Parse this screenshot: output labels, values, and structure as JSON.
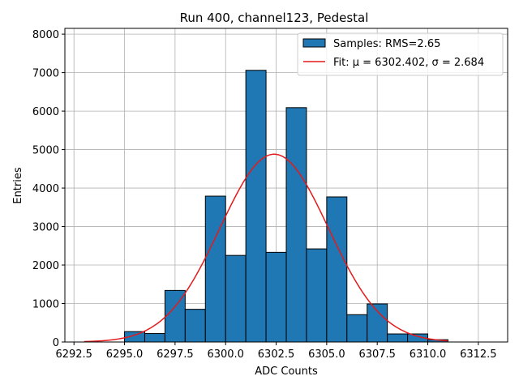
{
  "chart_data": {
    "type": "bar",
    "title": "Run 400, channel123, Pedestal",
    "xlabel": "ADC Counts",
    "ylabel": "Entries",
    "xlim": [
      6292.05,
      6313.95
    ],
    "ylim": [
      0,
      8150
    ],
    "xticks": [
      6292.5,
      6295.0,
      6297.5,
      6300.0,
      6302.5,
      6305.0,
      6307.5,
      6310.0,
      6312.5
    ],
    "xtick_labels": [
      "6292.5",
      "6295.0",
      "6297.5",
      "6300.0",
      "6302.5",
      "6305.0",
      "6307.5",
      "6310.0",
      "6312.5"
    ],
    "yticks": [
      0,
      1000,
      2000,
      3000,
      4000,
      5000,
      6000,
      7000,
      8000
    ],
    "ytick_labels": [
      "0",
      "1000",
      "2000",
      "3000",
      "4000",
      "5000",
      "6000",
      "7000",
      "8000"
    ],
    "grid": true,
    "bar_color": "#1f77b4",
    "fit_color": "#e41a1c",
    "histogram": {
      "name": "Samples: RMS=2.65",
      "bins": [
        {
          "x0": 6293.0,
          "x1": 6294.0,
          "count": 0
        },
        {
          "x0": 6294.0,
          "x1": 6295.0,
          "count": 0
        },
        {
          "x0": 6295.0,
          "x1": 6296.0,
          "count": 270
        },
        {
          "x0": 6296.0,
          "x1": 6297.0,
          "count": 220
        },
        {
          "x0": 6297.0,
          "x1": 6298.0,
          "count": 1340
        },
        {
          "x0": 6298.0,
          "x1": 6299.0,
          "count": 850
        },
        {
          "x0": 6299.0,
          "x1": 6300.0,
          "count": 3790
        },
        {
          "x0": 6300.0,
          "x1": 6301.0,
          "count": 2250
        },
        {
          "x0": 6301.0,
          "x1": 6302.0,
          "count": 7060
        },
        {
          "x0": 6302.0,
          "x1": 6303.0,
          "count": 2330
        },
        {
          "x0": 6303.0,
          "x1": 6304.0,
          "count": 6090
        },
        {
          "x0": 6304.0,
          "x1": 6305.0,
          "count": 2420
        },
        {
          "x0": 6305.0,
          "x1": 6306.0,
          "count": 3770
        },
        {
          "x0": 6306.0,
          "x1": 6307.0,
          "count": 710
        },
        {
          "x0": 6307.0,
          "x1": 6308.0,
          "count": 990
        },
        {
          "x0": 6308.0,
          "x1": 6309.0,
          "count": 210
        },
        {
          "x0": 6309.0,
          "x1": 6310.0,
          "count": 210
        },
        {
          "x0": 6310.0,
          "x1": 6311.0,
          "count": 60
        }
      ]
    },
    "fit": {
      "name": "Fit: μ = 6302.402, σ = 2.684",
      "mu": 6302.402,
      "sigma": 2.684,
      "amplitude": 4880,
      "x_range": [
        6293.0,
        6311.0
      ]
    },
    "legend": {
      "location": "top-right",
      "entries": [
        "Samples: RMS=2.65",
        "Fit: μ = 6302.402, σ = 2.684"
      ]
    }
  }
}
